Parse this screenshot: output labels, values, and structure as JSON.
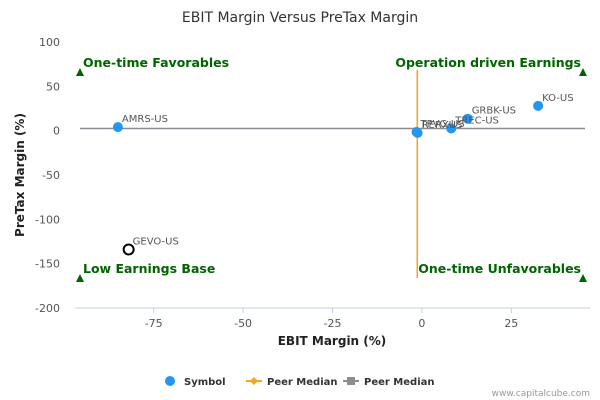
{
  "chart_data": {
    "type": "scatter",
    "title": "EBIT Margin Versus PreTax Margin",
    "xlabel": "EBIT Margin (%)",
    "ylabel": "PreTax Margin (%)",
    "xlim": [
      -97,
      47
    ],
    "ylim": [
      -200,
      100
    ],
    "xticks": [
      -75,
      -50,
      -25,
      0,
      25
    ],
    "yticks": [
      100,
      50,
      0,
      -50,
      -100,
      -150,
      -200
    ],
    "grid": false,
    "legend_position": "bottom",
    "colors": {
      "points": "#2196F3",
      "x_median": "#F5A623",
      "y_median": "#8C8C94",
      "quadrant_text": "#006400"
    },
    "points": [
      {
        "label": "KO-US",
        "x": 32.5,
        "y": 28,
        "style": "filled"
      },
      {
        "label": "GRBK-US",
        "x": 12.8,
        "y": 13.5,
        "style": "filled"
      },
      {
        "label": "TREC-US",
        "x": 8.2,
        "y": 2.5,
        "style": "filled"
      },
      {
        "label": "TPVG-US",
        "x": -1.5,
        "y": -1.5,
        "style": "filled"
      },
      {
        "label": "RERXUS",
        "x": -1.2,
        "y": -2.5,
        "style": "filled"
      },
      {
        "label": "AMRS-US",
        "x": -85,
        "y": 4,
        "style": "filled"
      },
      {
        "label": "GEVO-US",
        "x": -82,
        "y": -134,
        "style": "hollow"
      }
    ],
    "peer_median_x": -1.3,
    "peer_median_y": 2.5,
    "quadrants": {
      "top_left": "One-time Favorables",
      "top_right": "Operation driven Earnings",
      "bottom_left": "Low Earnings Base",
      "bottom_right": "One-time Unfavorables"
    },
    "legend": [
      {
        "label": "Symbol",
        "kind": "circle"
      },
      {
        "label": "Peer Median",
        "kind": "line-diamond"
      },
      {
        "label": "Peer Median",
        "kind": "line-square"
      }
    ]
  },
  "watermark": "www.capitalcube.com"
}
